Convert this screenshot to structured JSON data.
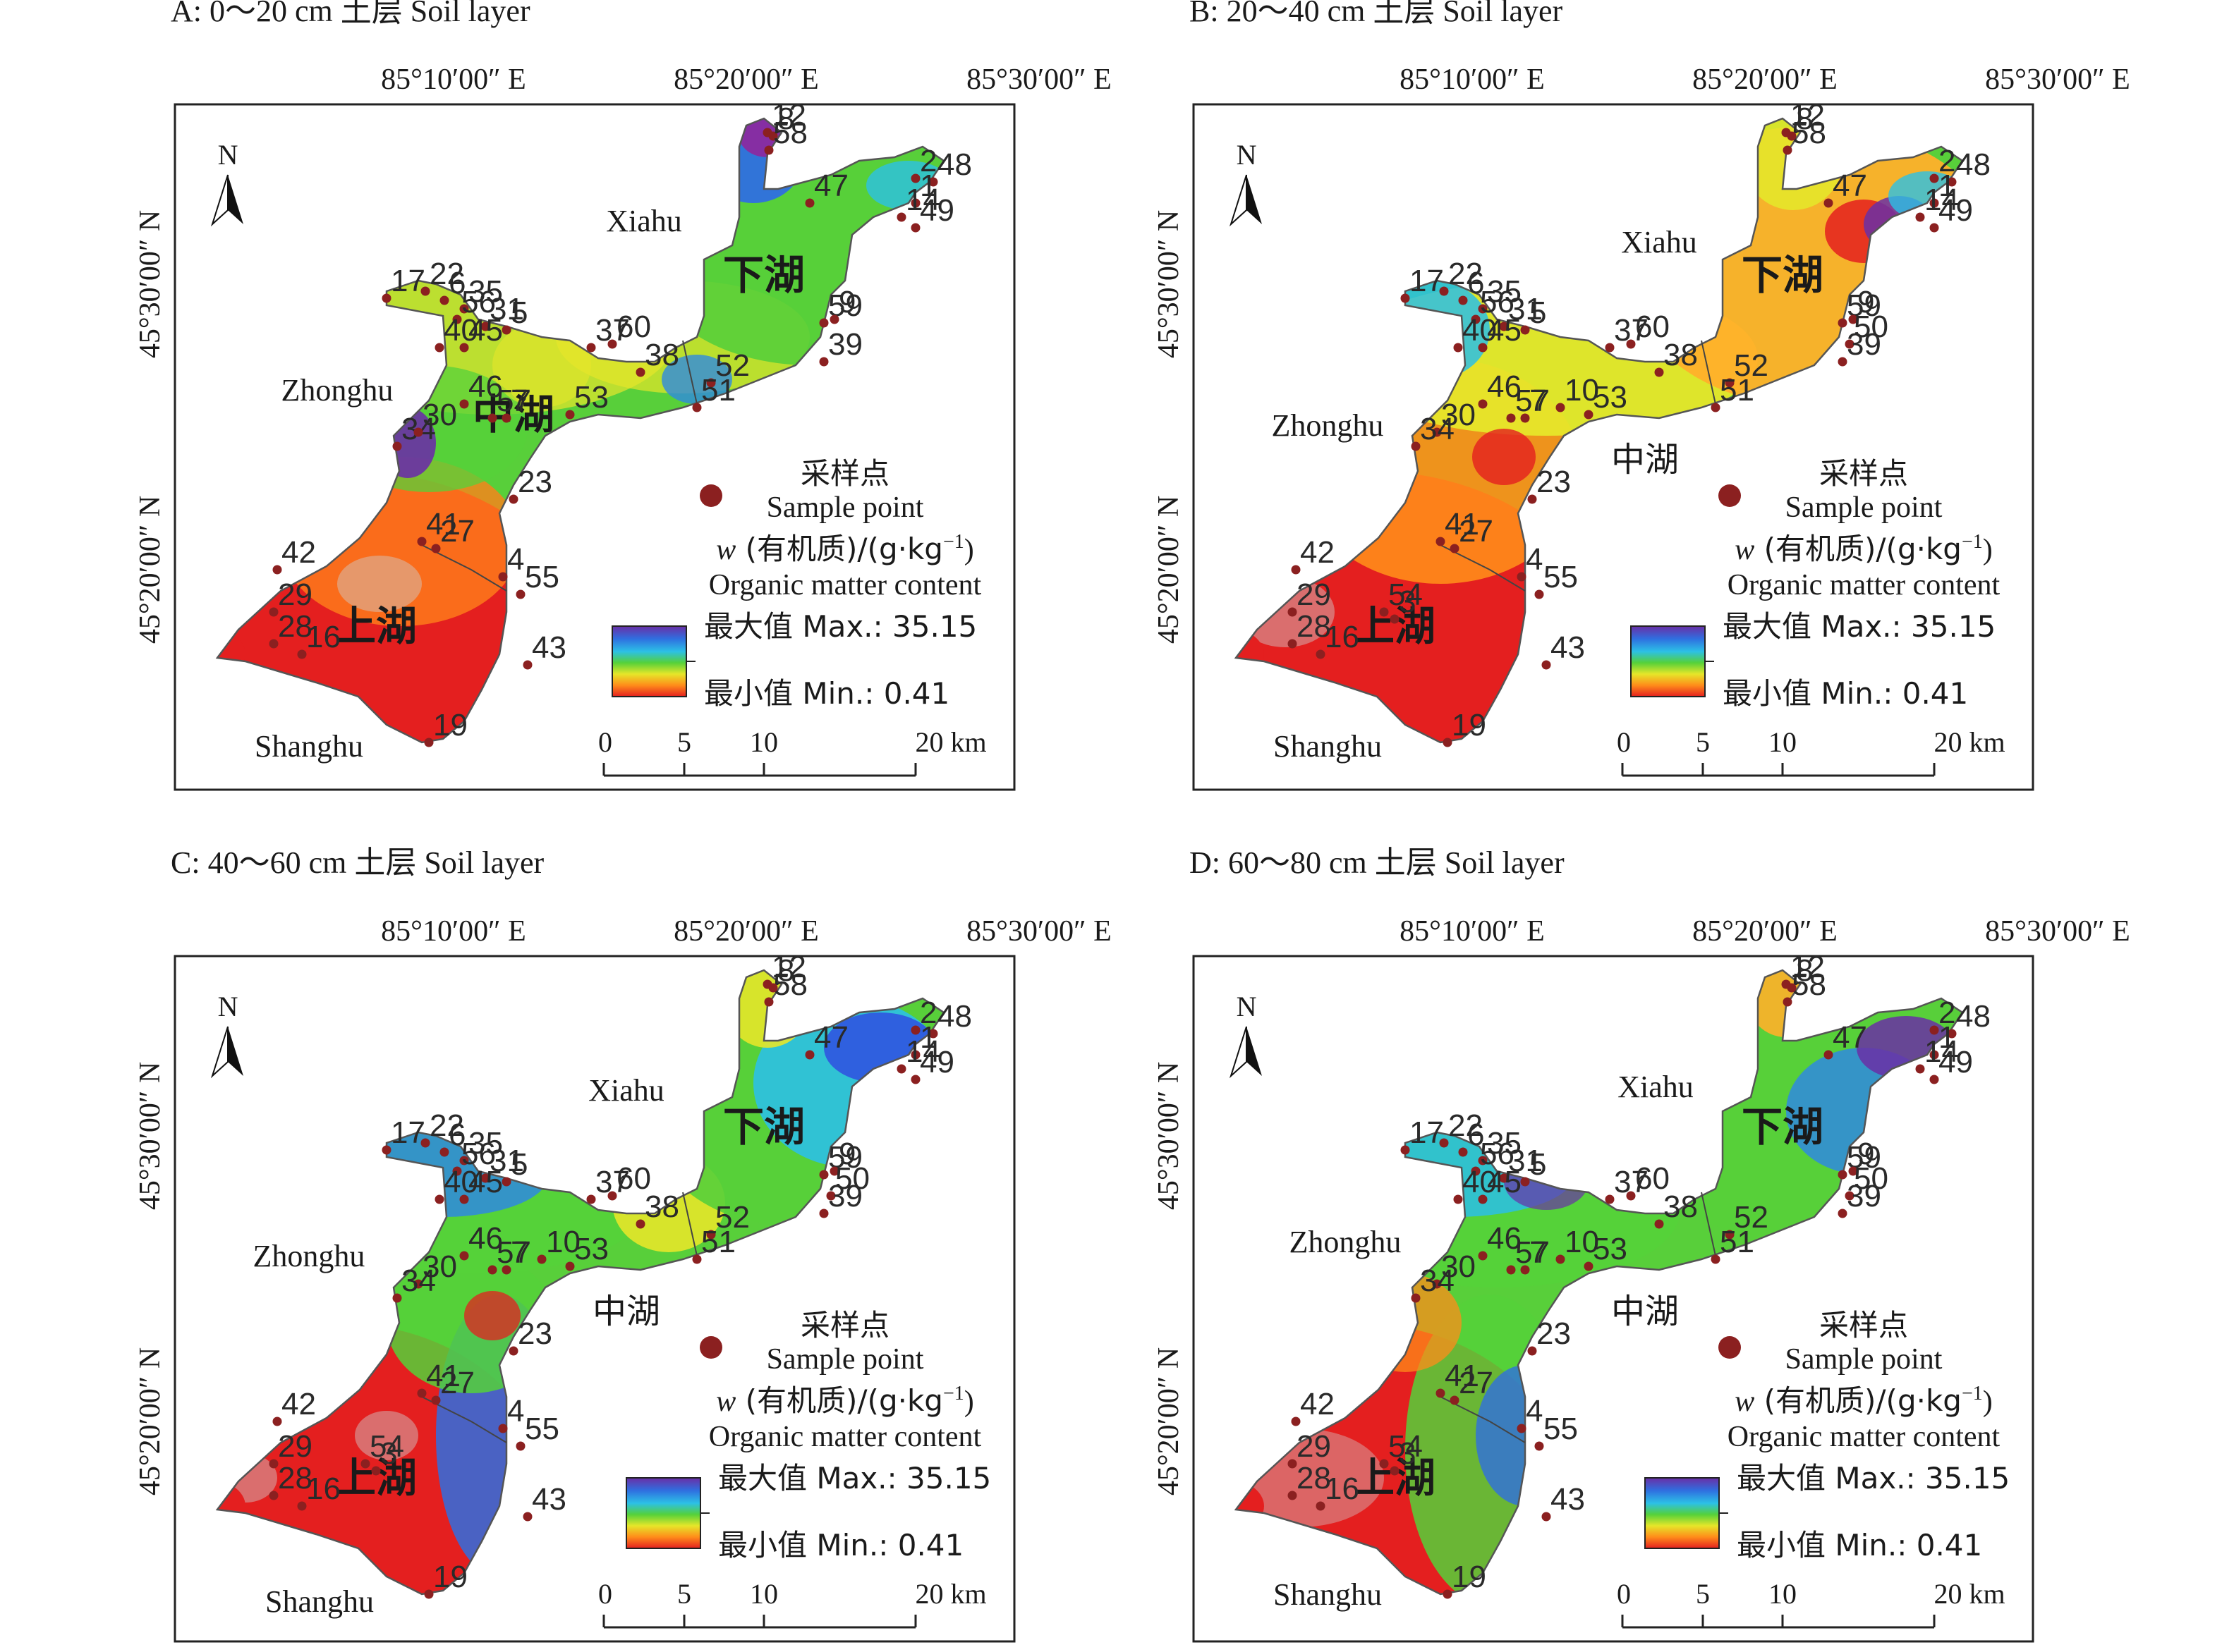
{
  "figure": {
    "legend": {
      "sample_point_cn": "采样点",
      "sample_point_en": "Sample point",
      "variable_prefix": "w",
      "variable_cn": " (有机质)/(g·kg",
      "variable_sup": "−1",
      "variable_suffix": ")",
      "variable_en": "Organic matter content",
      "max_label": "最大值 Max.: 35.15",
      "min_label": "最小值 Min.: 0.41",
      "max_value": 35.15,
      "min_value": 0.41
    },
    "scale_bar": {
      "ticks": [
        "0",
        "5",
        "10",
        "20 km"
      ]
    },
    "longitude_labels": [
      "85°10′00″ E",
      "85°20′00″ E",
      "85°30′00″ E"
    ],
    "latitude_labels": [
      "45°30′00″ N",
      "45°20′00″ N"
    ],
    "north_label": "N",
    "place_names": {
      "zhonghu": "Zhonghu",
      "xiahu": "Xiahu",
      "shanghu": "Shanghu"
    },
    "lake_names": {
      "zhonghu_cn": "中湖",
      "xiahu_cn": "下湖",
      "shanghu_cn": "上湖"
    },
    "colors": {
      "max": "#6a2fa6",
      "min": "#e41f1f",
      "sample_point": "#8b2020"
    }
  },
  "panels": [
    {
      "id": "A",
      "title": "A: 0～20 cm 土层 Soil layer",
      "zhonghu_label_on_map": true,
      "points": [
        "12",
        "8",
        "58",
        "2",
        "48",
        "1",
        "14",
        "49",
        "47",
        "17",
        "22",
        "6",
        "35",
        "56",
        "31",
        "5",
        "37",
        "60",
        "38",
        "59",
        "9",
        "52",
        "39",
        "51",
        "40",
        "45",
        "46",
        "53",
        "34",
        "57",
        "7",
        "23",
        "30",
        "27",
        "41",
        "42",
        "4",
        "55",
        "29",
        "28",
        "16",
        "43",
        "19"
      ]
    },
    {
      "id": "B",
      "title": "B: 20～40 cm 土层 Soil layer",
      "zhonghu_label_on_map": false,
      "points": [
        "58",
        "8",
        "12",
        "2",
        "48",
        "47",
        "1",
        "14",
        "49",
        "17",
        "22",
        "6",
        "35",
        "56",
        "31",
        "5",
        "37",
        "60",
        "38",
        "59",
        "9",
        "50",
        "52",
        "39",
        "51",
        "40",
        "45",
        "46",
        "57",
        "7",
        "10",
        "53",
        "30",
        "34",
        "23",
        "27",
        "41",
        "42",
        "4",
        "55",
        "29",
        "54",
        "3",
        "28",
        "16",
        "43",
        "19"
      ]
    },
    {
      "id": "C",
      "title": "C: 40～60 cm 土层 Soil layer",
      "zhonghu_label_on_map": false,
      "points": [
        "58",
        "8",
        "12",
        "2",
        "48",
        "47",
        "1",
        "14",
        "49",
        "17",
        "22",
        "6",
        "35",
        "56",
        "31",
        "5",
        "37",
        "60",
        "38",
        "59",
        "9",
        "50",
        "52",
        "39",
        "51",
        "40",
        "45",
        "10",
        "53",
        "46",
        "57",
        "7",
        "30",
        "34",
        "23",
        "27",
        "41",
        "42",
        "4",
        "55",
        "29",
        "54",
        "3",
        "28",
        "16",
        "43",
        "19"
      ]
    },
    {
      "id": "D",
      "title": "D: 60～80 cm 土层 Soil layer",
      "zhonghu_label_on_map": false,
      "points": [
        "58",
        "8",
        "12",
        "2",
        "48",
        "47",
        "1",
        "14",
        "49",
        "17",
        "22",
        "6",
        "35",
        "56",
        "31",
        "5",
        "37",
        "60",
        "38",
        "59",
        "9",
        "50",
        "52",
        "39",
        "51",
        "40",
        "45",
        "10",
        "53",
        "46",
        "57",
        "7",
        "30",
        "34",
        "23",
        "27",
        "41",
        "42",
        "4",
        "55",
        "29",
        "54",
        "3",
        "28",
        "16",
        "43",
        "19"
      ]
    }
  ]
}
